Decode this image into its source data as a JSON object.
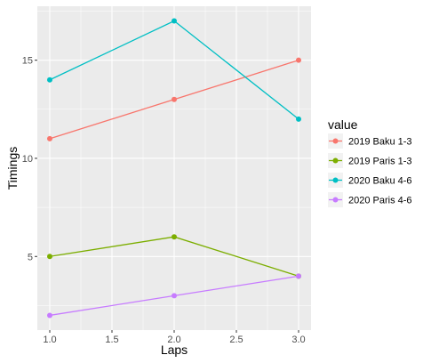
{
  "chart_data": {
    "type": "line",
    "x": [
      1.0,
      2.0,
      3.0
    ],
    "xlabel": "Laps",
    "ylabel": "Timings",
    "xlim": [
      0.9,
      3.1
    ],
    "ylim": [
      1.25,
      17.75
    ],
    "x_ticks": [
      1.0,
      1.5,
      2.0,
      2.5,
      3.0
    ],
    "x_tick_labels": [
      "1.0",
      "1.5",
      "2.0",
      "2.5",
      "3.0"
    ],
    "y_ticks": [
      5,
      10,
      15
    ],
    "y_tick_labels": [
      "5",
      "10",
      "15"
    ],
    "grid": true,
    "legend_position": "right",
    "legend_title": "value",
    "series": [
      {
        "name": "2019 Baku 1-3",
        "color": "#F8766D",
        "values": [
          11,
          13,
          15
        ]
      },
      {
        "name": "2019 Paris 1-3",
        "color": "#7CAE00",
        "values": [
          5,
          6,
          4
        ]
      },
      {
        "name": "2020 Baku 4-6",
        "color": "#00BFC4",
        "values": [
          14,
          17,
          12
        ]
      },
      {
        "name": "2020 Paris 4-6",
        "color": "#C77CFF",
        "values": [
          2,
          3,
          4
        ]
      }
    ]
  }
}
